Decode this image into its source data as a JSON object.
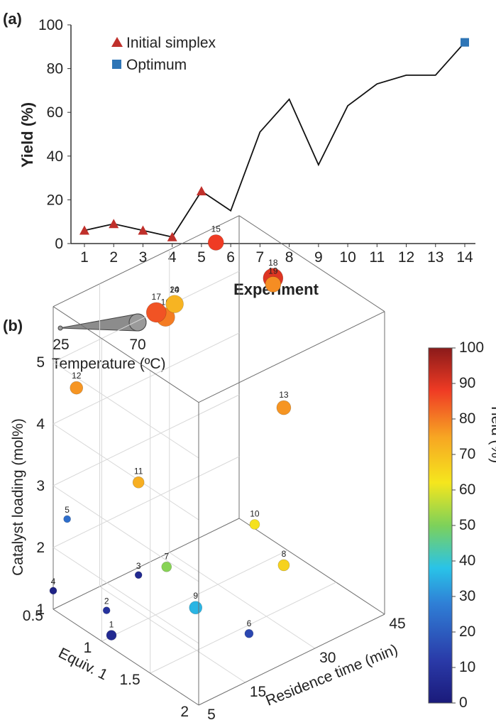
{
  "panel_a": {
    "label": "(a)",
    "legend": [
      {
        "name": "Initial simplex",
        "marker": "triangle",
        "color": "#c0302b"
      },
      {
        "name": "Optimum",
        "marker": "square",
        "color": "#2e75b6"
      }
    ]
  },
  "panel_b": {
    "label": "(b)",
    "temperature_legend": {
      "title": "Temperature (ºC)",
      "min_label": "25",
      "max_label": "70"
    }
  },
  "chart_data": [
    {
      "type": "line",
      "xlabel": "Experiment",
      "ylabel": "Yield (%)",
      "xlim": [
        1,
        14
      ],
      "ylim": [
        0,
        100
      ],
      "x_ticks": [
        "1",
        "2",
        "3",
        "4",
        "5",
        "6",
        "7",
        "8",
        "9",
        "10",
        "11",
        "12",
        "13",
        "14"
      ],
      "y_ticks": [
        "0",
        "20",
        "40",
        "60",
        "80",
        "100"
      ],
      "x": [
        1,
        2,
        3,
        4,
        5,
        6,
        7,
        8,
        9,
        10,
        11,
        12,
        13,
        14
      ],
      "y": [
        6,
        9,
        6,
        3,
        24,
        15,
        51,
        66,
        36,
        63,
        73,
        77,
        77,
        92
      ],
      "line_color": "#111111",
      "series": [
        {
          "name": "Initial simplex",
          "x": [
            1,
            2,
            3,
            4,
            5
          ],
          "y": [
            6,
            9,
            6,
            3,
            24
          ],
          "marker": "triangle",
          "color": "#c0302b"
        },
        {
          "name": "Optimum",
          "x": [
            14
          ],
          "y": [
            92
          ],
          "marker": "square",
          "color": "#2e75b6"
        }
      ]
    },
    {
      "type": "scatter",
      "xlabel": "Residence time (min)",
      "ylabel": "Catalyst loading (mol%)",
      "zlabel": "Equiv. 1",
      "colorbar_label": "Yield (%)",
      "residence_time_ticks": [
        "5",
        "15",
        "30",
        "45"
      ],
      "catalyst_ticks": [
        "1",
        "2",
        "3",
        "4",
        "5"
      ],
      "equiv_ticks": [
        "0.5",
        "1",
        "1.5",
        "2"
      ],
      "colorbar_ticks": [
        "0",
        "10",
        "20",
        "30",
        "40",
        "50",
        "60",
        "70",
        "80",
        "90",
        "100"
      ],
      "residence_time_range": [
        5,
        45
      ],
      "catalyst_range": [
        1,
        5
      ],
      "equiv_range": [
        0.5,
        2
      ],
      "yield_range": [
        0,
        100
      ],
      "temperature_range": [
        25,
        70
      ],
      "points": [
        {
          "label": "1",
          "residence_time": 5,
          "equiv": 1.1,
          "catalyst": 1.2,
          "temperature": 35,
          "yield": 6
        },
        {
          "label": "2",
          "residence_time": 5,
          "equiv": 1.05,
          "catalyst": 1.55,
          "temperature": 25,
          "yield": 9
        },
        {
          "label": "3",
          "residence_time": 15,
          "equiv": 0.9,
          "catalyst": 1.6,
          "temperature": 25,
          "yield": 6
        },
        {
          "label": "4",
          "residence_time": 5,
          "equiv": 0.5,
          "catalyst": 1.3,
          "temperature": 25,
          "yield": 3
        },
        {
          "label": "5",
          "residence_time": 8,
          "equiv": 0.5,
          "catalyst": 2.35,
          "temperature": 25,
          "yield": 24
        },
        {
          "label": "6",
          "residence_time": 20,
          "equiv": 1.8,
          "catalyst": 1.4,
          "temperature": 30,
          "yield": 15
        },
        {
          "label": "7",
          "residence_time": 20,
          "equiv": 0.95,
          "catalyst": 1.6,
          "temperature": 35,
          "yield": 51
        },
        {
          "label": "8",
          "residence_time": 40,
          "equiv": 1.2,
          "catalyst": 1.15,
          "temperature": 40,
          "yield": 66
        },
        {
          "label": "9",
          "residence_time": 20,
          "equiv": 1.25,
          "catalyst": 1.25,
          "temperature": 45,
          "yield": 36
        },
        {
          "label": "10",
          "residence_time": 40,
          "equiv": 0.9,
          "catalyst": 1.5,
          "temperature": 35,
          "yield": 63
        },
        {
          "label": "11",
          "residence_time": 15,
          "equiv": 0.9,
          "catalyst": 3.1,
          "temperature": 40,
          "yield": 73
        },
        {
          "label": "12",
          "residence_time": 10,
          "equiv": 0.5,
          "catalyst": 4.4,
          "temperature": 45,
          "yield": 77
        },
        {
          "label": "13",
          "residence_time": 40,
          "equiv": 1.2,
          "catalyst": 3.7,
          "temperature": 50,
          "yield": 77
        },
        {
          "label": "14",
          "residence_time": 30,
          "equiv": 0.55,
          "catalyst": 5.1,
          "temperature": 48,
          "yield": 92
        },
        {
          "label": "15",
          "residence_time": 40,
          "equiv": 0.5,
          "catalyst": 5.65,
          "temperature": 55,
          "yield": 88
        },
        {
          "label": "16",
          "residence_time": 25,
          "equiv": 0.7,
          "catalyst": 5.2,
          "temperature": 65,
          "yield": 80
        },
        {
          "label": "17",
          "residence_time": 23,
          "equiv": 0.7,
          "catalyst": 5.35,
          "temperature": 70,
          "yield": 85
        },
        {
          "label": "18",
          "residence_time": 45,
          "equiv": 0.85,
          "catalyst": 5.25,
          "temperature": 70,
          "yield": 90
        },
        {
          "label": "19",
          "residence_time": 45,
          "equiv": 0.85,
          "catalyst": 5.15,
          "temperature": 55,
          "yield": 78
        },
        {
          "label": "20",
          "residence_time": 28,
          "equiv": 0.65,
          "catalyst": 5.25,
          "temperature": 62,
          "yield": 72
        }
      ]
    }
  ]
}
